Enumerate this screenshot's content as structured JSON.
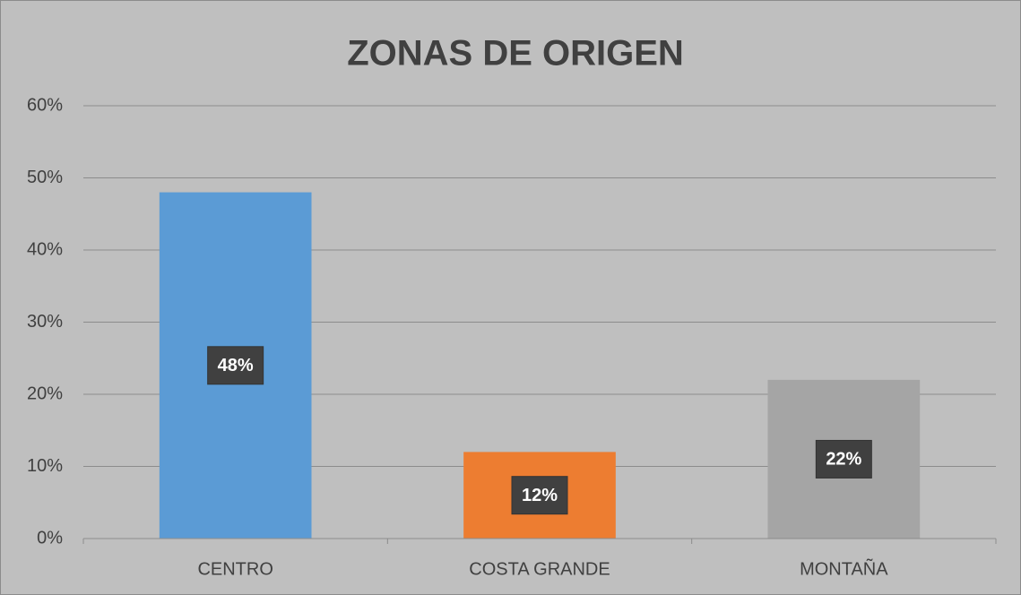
{
  "chart_data": {
    "type": "bar",
    "title": "ZONAS DE ORIGEN",
    "categories": [
      "CENTRO",
      "COSTA GRANDE",
      "MONTAÑA"
    ],
    "values": [
      48,
      12,
      22
    ],
    "value_labels": [
      "48%",
      "12%",
      "22%"
    ],
    "colors": [
      "#5b9bd5",
      "#ed7d31",
      "#a5a5a5"
    ],
    "ylim": [
      0,
      60
    ],
    "yticks": [
      {
        "value": 0,
        "label": "0%"
      },
      {
        "value": 10,
        "label": "10%"
      },
      {
        "value": 20,
        "label": "20%"
      },
      {
        "value": 30,
        "label": "30%"
      },
      {
        "value": 40,
        "label": "40%"
      },
      {
        "value": 50,
        "label": "50%"
      },
      {
        "value": 60,
        "label": "60%"
      }
    ],
    "grid": true
  }
}
